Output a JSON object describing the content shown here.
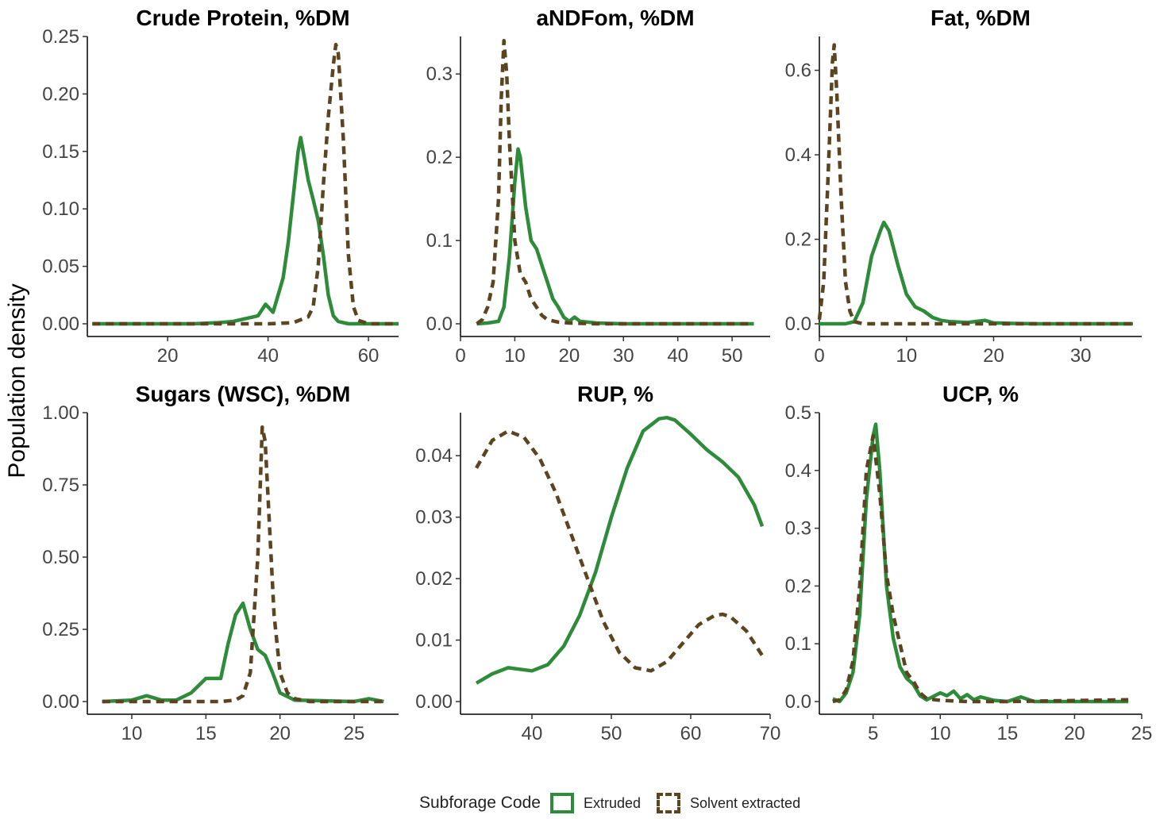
{
  "ylabel": "Population density",
  "legend": {
    "title": "Subforage Code",
    "items": [
      {
        "label": "Extruded",
        "color": "#2e8b3a",
        "style": "solid"
      },
      {
        "label": "Solvent extracted",
        "color": "#5a4520",
        "style": "dashed"
      }
    ]
  },
  "chart_data": [
    {
      "type": "line",
      "title": "Crude Protein, %DM",
      "xlim": [
        4,
        66
      ],
      "ylim": [
        0,
        0.25
      ],
      "xticks": [
        20,
        40,
        60
      ],
      "xtick_labels": [
        "20",
        "40",
        "60"
      ],
      "yticks": [
        0,
        0.05,
        0.1,
        0.15,
        0.2,
        0.25
      ],
      "ytick_labels": [
        "0.00",
        "0.05",
        "0.10",
        "0.15",
        "0.20",
        "0.25"
      ],
      "series": [
        {
          "name": "Extruded",
          "x": [
            5,
            15,
            25,
            30,
            33,
            36,
            38,
            39.5,
            41,
            42,
            43,
            44,
            45,
            46,
            46.5,
            47,
            48,
            49,
            50,
            51,
            52,
            53,
            54,
            56,
            60,
            66
          ],
          "y": [
            0,
            0,
            0,
            0.001,
            0.002,
            0.005,
            0.007,
            0.017,
            0.01,
            0.025,
            0.04,
            0.07,
            0.11,
            0.15,
            0.162,
            0.15,
            0.125,
            0.108,
            0.09,
            0.06,
            0.025,
            0.007,
            0.002,
            0,
            0,
            0
          ]
        },
        {
          "name": "Solvent extracted",
          "x": [
            5,
            30,
            40,
            45,
            48,
            49,
            50,
            51,
            52,
            53,
            53.5,
            54,
            55,
            56,
            57,
            58,
            60,
            66
          ],
          "y": [
            0,
            0,
            0,
            0.001,
            0.006,
            0.015,
            0.05,
            0.12,
            0.18,
            0.225,
            0.243,
            0.235,
            0.16,
            0.06,
            0.015,
            0.003,
            0,
            0
          ]
        }
      ]
    },
    {
      "type": "line",
      "title": "aNDFom, %DM",
      "xlim": [
        0,
        57
      ],
      "ylim": [
        0,
        0.345
      ],
      "xticks": [
        0,
        10,
        20,
        30,
        40,
        50
      ],
      "xtick_labels": [
        "0",
        "10",
        "20",
        "30",
        "40",
        "50"
      ],
      "yticks": [
        0,
        0.1,
        0.2,
        0.3
      ],
      "ytick_labels": [
        "0.0",
        "0.1",
        "0.2",
        "0.3"
      ],
      "series": [
        {
          "name": "Extruded",
          "x": [
            3,
            5,
            7,
            8,
            9,
            10,
            10.6,
            11,
            12,
            13,
            14,
            15,
            16,
            17,
            18,
            19,
            20,
            21,
            22,
            25,
            30,
            40,
            54
          ],
          "y": [
            0,
            0.001,
            0.003,
            0.02,
            0.08,
            0.17,
            0.21,
            0.2,
            0.14,
            0.1,
            0.09,
            0.07,
            0.05,
            0.03,
            0.02,
            0.008,
            0.003,
            0.008,
            0.003,
            0.001,
            0,
            0,
            0
          ]
        },
        {
          "name": "Solvent extracted",
          "x": [
            3,
            4,
            5,
            6,
            7,
            7.5,
            8,
            8.5,
            9,
            10,
            11,
            12,
            13,
            14,
            15,
            16,
            18,
            20,
            25,
            54
          ],
          "y": [
            0,
            0.005,
            0.02,
            0.05,
            0.15,
            0.27,
            0.34,
            0.3,
            0.22,
            0.1,
            0.06,
            0.05,
            0.03,
            0.02,
            0.01,
            0.005,
            0.002,
            0.001,
            0,
            0
          ]
        }
      ]
    },
    {
      "type": "line",
      "title": "Fat, %DM",
      "xlim": [
        0,
        37
      ],
      "ylim": [
        0,
        0.68
      ],
      "xticks": [
        0,
        10,
        20,
        30
      ],
      "xtick_labels": [
        "0",
        "10",
        "20",
        "30"
      ],
      "yticks": [
        0,
        0.2,
        0.4,
        0.6
      ],
      "ytick_labels": [
        "0.0",
        "0.2",
        "0.4",
        "0.6"
      ],
      "series": [
        {
          "name": "Extruded",
          "x": [
            0,
            3,
            4,
            5,
            6,
            7,
            7.4,
            8,
            9,
            10,
            11,
            12,
            13,
            14,
            15,
            17,
            19,
            20,
            22,
            25,
            36
          ],
          "y": [
            0,
            0,
            0.005,
            0.05,
            0.16,
            0.22,
            0.24,
            0.22,
            0.14,
            0.07,
            0.04,
            0.03,
            0.015,
            0.008,
            0.005,
            0.003,
            0.008,
            0.002,
            0.001,
            0,
            0
          ]
        },
        {
          "name": "Solvent extracted",
          "x": [
            0,
            0.5,
            1,
            1.5,
            1.7,
            2,
            2.5,
            3,
            3.5,
            4,
            5,
            36
          ],
          "y": [
            0.01,
            0.1,
            0.35,
            0.62,
            0.66,
            0.55,
            0.3,
            0.1,
            0.03,
            0.005,
            0,
            0
          ]
        }
      ]
    },
    {
      "type": "line",
      "title": "Sugars (WSC), %DM",
      "xlim": [
        7,
        28
      ],
      "ylim": [
        0,
        1.0
      ],
      "xticks": [
        10,
        15,
        20,
        25
      ],
      "xtick_labels": [
        "10",
        "15",
        "20",
        "25"
      ],
      "yticks": [
        0,
        0.25,
        0.5,
        0.75,
        1.0
      ],
      "ytick_labels": [
        "0.00",
        "0.25",
        "0.50",
        "0.75",
        "1.00"
      ],
      "series": [
        {
          "name": "Extruded",
          "x": [
            8,
            10,
            11,
            12,
            13,
            14,
            15,
            16,
            16.5,
            17,
            17.5,
            18,
            18.5,
            19,
            19.5,
            20,
            21,
            25,
            26,
            27
          ],
          "y": [
            0,
            0.005,
            0.02,
            0.005,
            0.005,
            0.03,
            0.08,
            0.08,
            0.2,
            0.3,
            0.34,
            0.25,
            0.18,
            0.16,
            0.1,
            0.03,
            0.005,
            0,
            0.01,
            0
          ]
        },
        {
          "name": "Solvent extracted",
          "x": [
            8,
            16,
            17,
            17.5,
            18,
            18.5,
            18.8,
            19,
            19.3,
            19.6,
            20,
            20.5,
            21,
            22,
            27
          ],
          "y": [
            0,
            0,
            0.005,
            0.02,
            0.1,
            0.5,
            0.95,
            0.9,
            0.6,
            0.3,
            0.1,
            0.03,
            0.01,
            0,
            0
          ]
        }
      ]
    },
    {
      "type": "line",
      "title": "RUP, %",
      "xlim": [
        31,
        70
      ],
      "ylim": [
        0,
        0.047
      ],
      "xticks": [
        40,
        50,
        60,
        70
      ],
      "xtick_labels": [
        "40",
        "50",
        "60",
        "70"
      ],
      "yticks": [
        0,
        0.01,
        0.02,
        0.03,
        0.04
      ],
      "ytick_labels": [
        "0.00",
        "0.01",
        "0.02",
        "0.03",
        "0.04"
      ],
      "series": [
        {
          "name": "Extruded",
          "x": [
            33,
            35,
            37,
            40,
            42,
            44,
            46,
            48,
            50,
            52,
            54,
            56,
            57,
            58,
            60,
            62,
            64,
            66,
            68,
            69
          ],
          "y": [
            0.003,
            0.0045,
            0.0055,
            0.005,
            0.006,
            0.009,
            0.014,
            0.021,
            0.03,
            0.038,
            0.044,
            0.046,
            0.0462,
            0.0458,
            0.0435,
            0.041,
            0.039,
            0.0365,
            0.032,
            0.0285
          ]
        },
        {
          "name": "Solvent extracted",
          "x": [
            33,
            35,
            37,
            39,
            41,
            43,
            45,
            47,
            49,
            51,
            53,
            55,
            57,
            59,
            61,
            63,
            64,
            65,
            67,
            69
          ],
          "y": [
            0.038,
            0.0425,
            0.044,
            0.043,
            0.0395,
            0.034,
            0.027,
            0.02,
            0.013,
            0.008,
            0.0055,
            0.005,
            0.0065,
            0.0095,
            0.0125,
            0.014,
            0.0142,
            0.0138,
            0.0115,
            0.0075
          ]
        }
      ]
    },
    {
      "type": "line",
      "title": "UCP, %",
      "xlim": [
        1,
        25
      ],
      "ylim": [
        0,
        0.5
      ],
      "xticks": [
        5,
        10,
        15,
        20,
        25
      ],
      "xtick_labels": [
        "5",
        "10",
        "15",
        "20",
        "25"
      ],
      "yticks": [
        0,
        0.1,
        0.2,
        0.3,
        0.4,
        0.5
      ],
      "ytick_labels": [
        "0.0",
        "0.1",
        "0.2",
        "0.3",
        "0.4",
        "0.5"
      ],
      "series": [
        {
          "name": "Extruded",
          "x": [
            2,
            2.5,
            3,
            3.5,
            4,
            4.5,
            5,
            5.2,
            5.5,
            6,
            6.5,
            7,
            7.5,
            8,
            8.5,
            9,
            10,
            10.5,
            11,
            11.5,
            12,
            12.5,
            13,
            14,
            15,
            16,
            17,
            20,
            24
          ],
          "y": [
            0.005,
            0.0,
            0.015,
            0.05,
            0.15,
            0.35,
            0.46,
            0.48,
            0.4,
            0.2,
            0.11,
            0.06,
            0.04,
            0.03,
            0.01,
            0.003,
            0.015,
            0.01,
            0.018,
            0.005,
            0.012,
            0.003,
            0.008,
            0.002,
            0,
            0.008,
            0,
            0,
            0
          ]
        },
        {
          "name": "Solvent extracted",
          "x": [
            2,
            2.5,
            3,
            3.5,
            4,
            4.5,
            5,
            5.5,
            6,
            6.5,
            7,
            7.5,
            8,
            8.5,
            9,
            10,
            12,
            15,
            24
          ],
          "y": [
            0,
            0.003,
            0.02,
            0.07,
            0.2,
            0.4,
            0.46,
            0.36,
            0.22,
            0.15,
            0.1,
            0.05,
            0.035,
            0.015,
            0.005,
            0.002,
            0,
            0,
            0.003
          ]
        }
      ]
    }
  ]
}
